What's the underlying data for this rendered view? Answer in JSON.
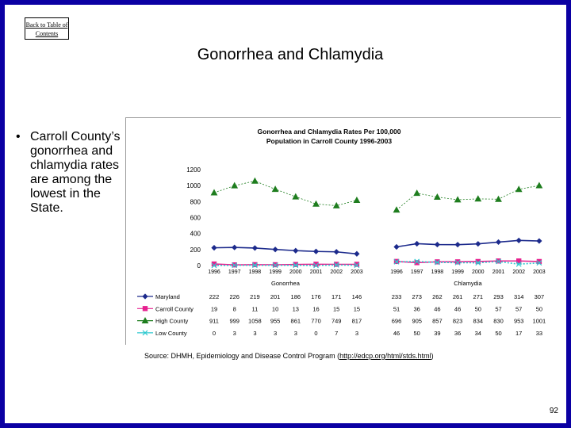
{
  "back_link": "Back to Table of Contents",
  "slide_title": "Gonorrhea and Chlamydia",
  "bullet_text": "Carroll County’s gonorrhea and chlamydia rates are among the lowest in the State.",
  "source": {
    "prefix": "Source: DHMH, Epidemiology and Disease Control Program (",
    "url": "http://edcp.org/html/stds.html",
    "suffix": ")"
  },
  "page_number": "92",
  "colors": {
    "maryland": "#1c2a8c",
    "carroll": "#e6208f",
    "high": "#1e7d1e",
    "low": "#2fc9d0",
    "border": "#0b00a3"
  },
  "chart_data": {
    "type": "line",
    "title": "Gonorrhea and Chlamydia Rates Per 100,000 Population in Carroll County 1996-2003",
    "title_lines": [
      "Gonorrhea and Chlamydia Rates Per 100,000",
      "Population in Carroll County 1996-2003"
    ],
    "ylim": [
      0,
      1200
    ],
    "yticks": [
      0,
      200,
      400,
      600,
      800,
      1000,
      1200
    ],
    "groups": [
      "Gonorrhea",
      "Chlamydia"
    ],
    "years": [
      "1996",
      "1997",
      "1998",
      "1999",
      "2000",
      "2001",
      "2002",
      "2003"
    ],
    "series": [
      {
        "name": "Maryland",
        "color": "#1c2a8c",
        "marker": "diamond",
        "gonorrhea": [
          222,
          226,
          219,
          201,
          186,
          176,
          171,
          146
        ],
        "chlamydia": [
          233,
          273,
          262,
          261,
          271,
          293,
          314,
          307
        ]
      },
      {
        "name": "Carroll County",
        "color": "#e6208f",
        "marker": "square",
        "gonorrhea": [
          19,
          8,
          11,
          10,
          13,
          16,
          15,
          15
        ],
        "chlamydia": [
          51,
          36,
          46,
          46,
          50,
          57,
          57,
          50
        ]
      },
      {
        "name": "High County",
        "color": "#1e7d1e",
        "marker": "triangle",
        "gonorrhea": [
          911,
          999,
          1058,
          955,
          861,
          770,
          749,
          817
        ],
        "chlamydia": [
          696,
          905,
          857,
          823,
          834,
          830,
          953,
          1001
        ]
      },
      {
        "name": "Low County",
        "color": "#2fc9d0",
        "marker": "x",
        "gonorrhea": [
          0,
          3,
          3,
          3,
          3,
          0,
          7,
          3
        ],
        "chlamydia": [
          46,
          50,
          39,
          36,
          34,
          50,
          17,
          33
        ]
      }
    ]
  }
}
